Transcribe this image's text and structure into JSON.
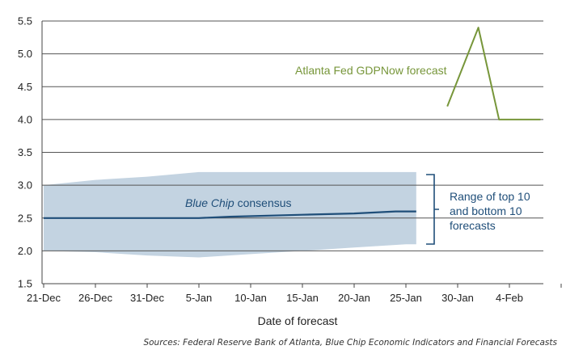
{
  "chart_data": {
    "type": "line",
    "title": "",
    "xlabel": "Date of forecast",
    "ylabel": "",
    "ylim": [
      1.5,
      5.5
    ],
    "yticks": [
      "1.5",
      "2.0",
      "2.5",
      "3.0",
      "3.5",
      "4.0",
      "4.5",
      "5.0",
      "5.5"
    ],
    "xticks": [
      "21-Dec",
      "26-Dec",
      "31-Dec",
      "5-Jan",
      "10-Jan",
      "15-Jan",
      "20-Jan",
      "25-Jan",
      "30-Jan",
      "4-Feb"
    ],
    "grid": "horizontal",
    "series": [
      {
        "name": "Atlanta Fed GDPNow forecast",
        "color": "#77963a",
        "x": [
          "2014-01-29",
          "2014-01-30",
          "2014-01-31",
          "2014-02-01",
          "2014-02-03",
          "2014-02-04",
          "2014-02-05",
          "2014-02-06",
          "2014-02-07"
        ],
        "y": [
          4.2,
          4.6,
          5.0,
          5.4,
          4.0,
          4.0,
          4.0,
          4.0,
          4.0
        ]
      },
      {
        "name": "Blue Chip consensus",
        "color": "#1f4e79",
        "x": [
          "2013-12-21",
          "2014-01-05",
          "2014-01-08",
          "2014-01-15",
          "2014-01-20",
          "2014-01-24",
          "2014-01-26"
        ],
        "y": [
          2.5,
          2.5,
          2.52,
          2.55,
          2.57,
          2.6,
          2.6
        ]
      }
    ],
    "band": {
      "name": "Range of top 10 and bottom 10 forecasts",
      "color": "#c3d3e1",
      "x": [
        "2013-12-21",
        "2013-12-26",
        "2013-12-31",
        "2014-01-05",
        "2014-01-10",
        "2014-01-15",
        "2014-01-20",
        "2014-01-25",
        "2014-01-26"
      ],
      "upper": [
        3.0,
        3.08,
        3.13,
        3.2,
        3.2,
        3.2,
        3.2,
        3.2,
        3.2
      ],
      "lower": [
        2.0,
        1.98,
        1.93,
        1.9,
        1.95,
        2.0,
        2.05,
        2.1,
        2.1
      ]
    },
    "annotations": {
      "gdpnow": "Atlanta Fed GDPNow forecast",
      "bluechip_italic": "Blue Chip",
      "bluechip_rest": " consensus",
      "range_lines": [
        "Range of top 10",
        "and bottom 10",
        "forecasts"
      ]
    },
    "source": "Sources: Federal Reserve Bank of Atlanta, Blue Chip Economic Indicators and Financial Forecasts"
  }
}
